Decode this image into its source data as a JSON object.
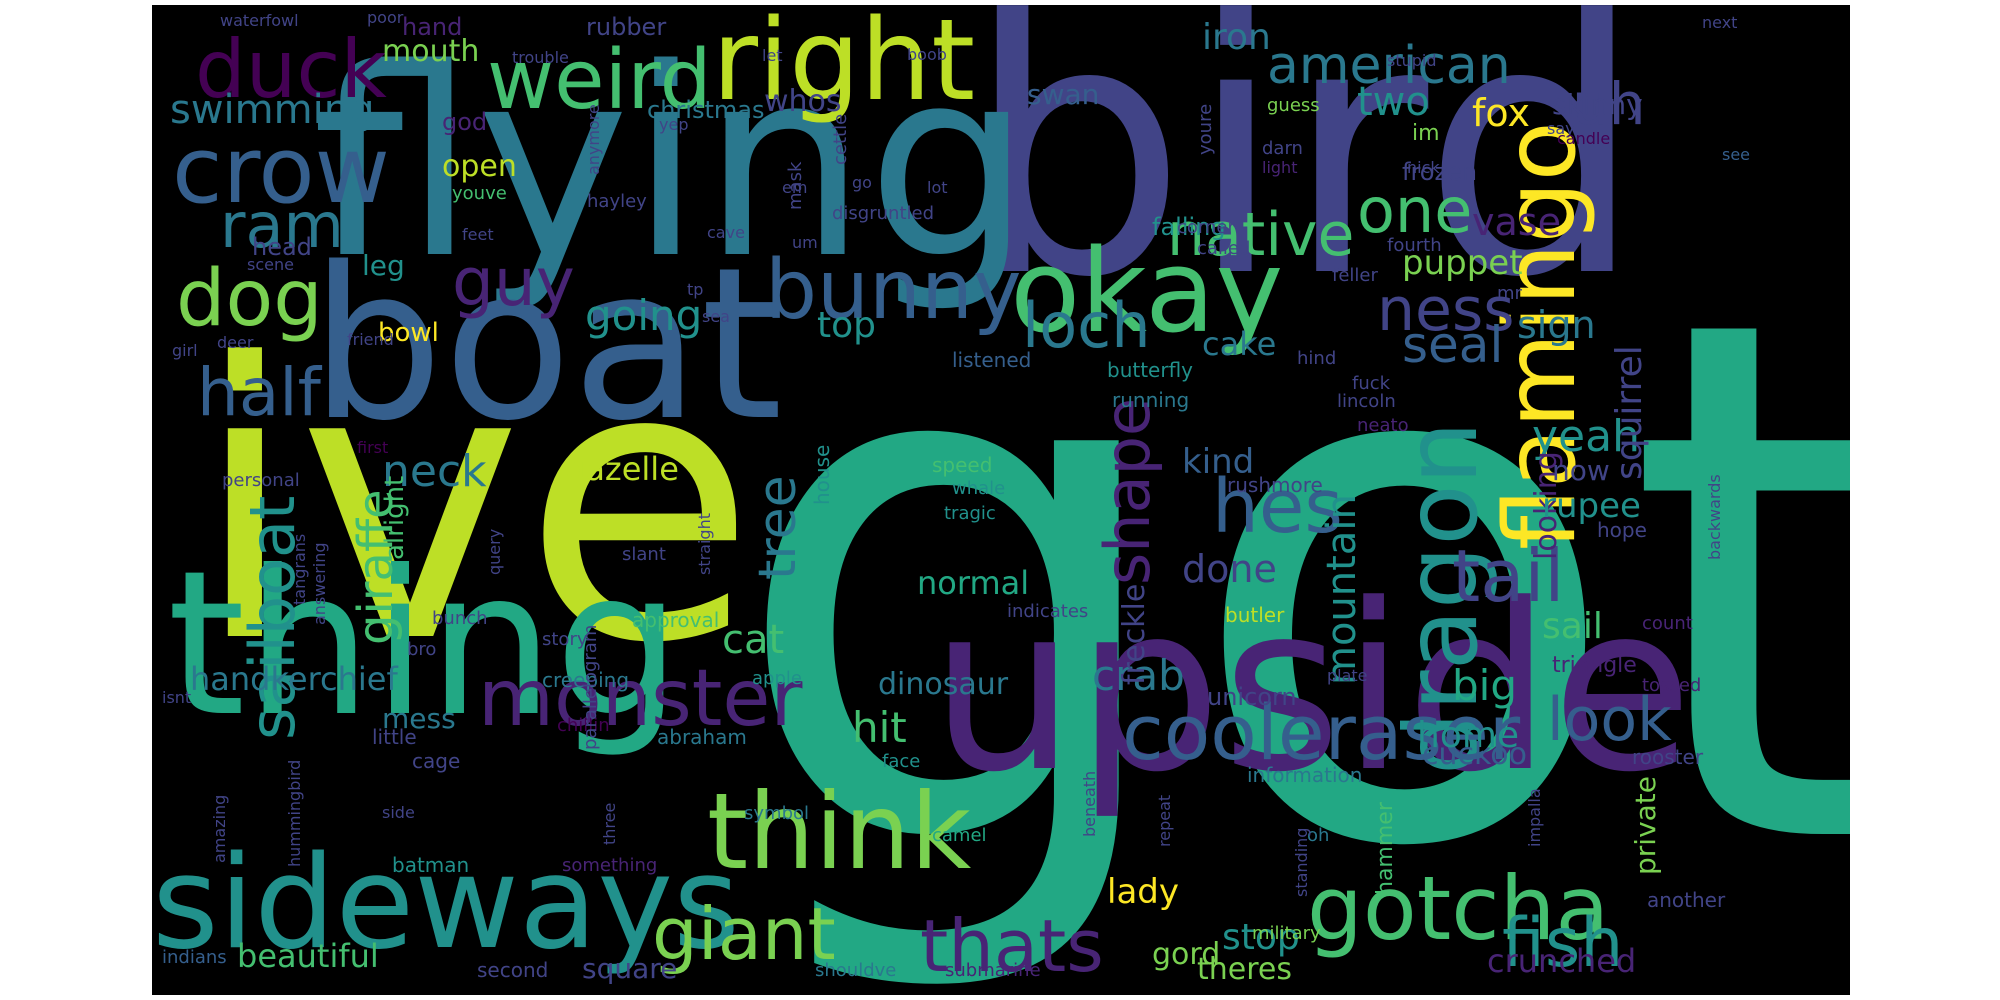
{
  "palette": {
    "background": "#000000",
    "page": "#ffffff",
    "colors": [
      "#440154",
      "#482475",
      "#414487",
      "#355f8d",
      "#2a788e",
      "#21918c",
      "#22a884",
      "#44bf70",
      "#7ad151",
      "#bddf26",
      "#fde725"
    ]
  },
  "words": [
    {
      "text": "got",
      "color": "#22a884",
      "vertical": false
    },
    {
      "text": "ive",
      "color": "#bddf26",
      "vertical": false
    },
    {
      "text": "bird",
      "color": "#414487",
      "vertical": false
    },
    {
      "text": "flying",
      "color": "#2a788e",
      "vertical": false
    },
    {
      "text": "boat",
      "color": "#355f8d",
      "vertical": false
    },
    {
      "text": "upside",
      "color": "#482475",
      "vertical": false
    },
    {
      "text": "thing",
      "color": "#22a884",
      "vertical": false
    },
    {
      "text": "sideways",
      "color": "#21918c",
      "vertical": false
    },
    {
      "text": "think",
      "color": "#7ad151",
      "vertical": false
    },
    {
      "text": "okay",
      "color": "#44bf70",
      "vertical": false
    },
    {
      "text": "right",
      "color": "#bddf26",
      "vertical": false
    },
    {
      "text": "crow",
      "color": "#355f8d",
      "vertical": false
    },
    {
      "text": "duck",
      "color": "#440154",
      "vertical": false
    },
    {
      "text": "dog",
      "color": "#7ad151",
      "vertical": false
    },
    {
      "text": "weird",
      "color": "#44bf70",
      "vertical": false
    },
    {
      "text": "bunny",
      "color": "#355f8d",
      "vertical": false
    },
    {
      "text": "flamingo",
      "color": "#fde725",
      "vertical": true
    },
    {
      "text": "dragon",
      "color": "#21918c",
      "vertical": true
    },
    {
      "text": "gotcha",
      "color": "#44bf70",
      "vertical": false
    },
    {
      "text": "monster",
      "color": "#482475",
      "vertical": false
    },
    {
      "text": "cooleraser",
      "color": "#355f8d",
      "vertical": false
    },
    {
      "text": "giant",
      "color": "#7ad151",
      "vertical": false
    },
    {
      "text": "thats",
      "color": "#482475",
      "vertical": false
    },
    {
      "text": "fish",
      "color": "#21918c",
      "vertical": false
    },
    {
      "text": "half",
      "color": "#355f8d",
      "vertical": false
    },
    {
      "text": "guy",
      "color": "#482475",
      "vertical": false
    },
    {
      "text": "native",
      "color": "#44bf70",
      "vertical": false
    },
    {
      "text": "one",
      "color": "#44bf70",
      "vertical": false
    },
    {
      "text": "american",
      "color": "#2a788e",
      "vertical": false
    },
    {
      "text": "hes",
      "color": "#355f8d",
      "vertical": false
    },
    {
      "text": "tail",
      "color": "#414487",
      "vertical": false
    },
    {
      "text": "loch",
      "color": "#2a788e",
      "vertical": false
    },
    {
      "text": "ram",
      "color": "#2a788e",
      "vertical": false
    },
    {
      "text": "ness",
      "color": "#414487",
      "vertical": false
    },
    {
      "text": "look",
      "color": "#355f8d",
      "vertical": false
    },
    {
      "text": "sailboat",
      "color": "#21918c",
      "vertical": true
    },
    {
      "text": "shape",
      "color": "#482475",
      "vertical": true
    },
    {
      "text": "uh",
      "color": "#414487",
      "vertical": false
    },
    {
      "text": "swimming",
      "color": "#2a788e",
      "vertical": false
    },
    {
      "text": "seal",
      "color": "#355f8d",
      "vertical": false
    },
    {
      "text": "going",
      "color": "#21918c",
      "vertical": false
    },
    {
      "text": "neck",
      "color": "#2a788e",
      "vertical": false
    },
    {
      "text": "giraffe",
      "color": "#44bf70",
      "vertical": true
    },
    {
      "text": "tree",
      "color": "#2a788e",
      "vertical": true
    },
    {
      "text": "mountain",
      "color": "#21918c",
      "vertical": true
    },
    {
      "text": "crab",
      "color": "#2a788e",
      "vertical": false
    },
    {
      "text": "hit",
      "color": "#44bf70",
      "vertical": false
    },
    {
      "text": "cat",
      "color": "#44bf70",
      "vertical": false
    },
    {
      "text": "handkerchief",
      "color": "#2a788e",
      "vertical": false
    },
    {
      "text": "gazelle",
      "color": "#bddf26",
      "vertical": false
    },
    {
      "text": "yeah",
      "color": "#21918c",
      "vertical": false
    },
    {
      "text": "kind",
      "color": "#355f8d",
      "vertical": false
    },
    {
      "text": "done",
      "color": "#414487",
      "vertical": false
    },
    {
      "text": "squirrel",
      "color": "#414487",
      "vertical": true
    },
    {
      "text": "looking",
      "color": "#482475",
      "vertical": true
    },
    {
      "text": "rupee",
      "color": "#21918c",
      "vertical": false
    },
    {
      "text": "sail",
      "color": "#44bf70",
      "vertical": false
    },
    {
      "text": "big",
      "color": "#22a884",
      "vertical": false
    },
    {
      "text": "home",
      "color": "#21918c",
      "vertical": false
    },
    {
      "text": "cuckoo",
      "color": "#355f8d",
      "vertical": false
    },
    {
      "text": "two",
      "color": "#21918c",
      "vertical": false
    },
    {
      "text": "fox",
      "color": "#fde725",
      "vertical": false
    },
    {
      "text": "vase",
      "color": "#482475",
      "vertical": false
    },
    {
      "text": "puppet",
      "color": "#7ad151",
      "vertical": false
    },
    {
      "text": "sign",
      "color": "#2a788e",
      "vertical": false
    },
    {
      "text": "top",
      "color": "#21918c",
      "vertical": false
    },
    {
      "text": "cake",
      "color": "#2a788e",
      "vertical": false
    },
    {
      "text": "lady",
      "color": "#fde725",
      "vertical": false
    },
    {
      "text": "stop",
      "color": "#21918c",
      "vertical": false
    },
    {
      "text": "beautiful",
      "color": "#44bf70",
      "vertical": false
    },
    {
      "text": "normal",
      "color": "#22a884",
      "vertical": false
    },
    {
      "text": "freckle",
      "color": "#414487",
      "vertical": true
    },
    {
      "text": "dinosaur",
      "color": "#2a788e",
      "vertical": false
    },
    {
      "text": "iron",
      "color": "#2a788e",
      "vertical": false
    },
    {
      "text": "mouth",
      "color": "#7ad151",
      "vertical": false
    },
    {
      "text": "open",
      "color": "#bddf26",
      "vertical": false
    },
    {
      "text": "whos",
      "color": "#414487",
      "vertical": false
    },
    {
      "text": "swan",
      "color": "#355f8d",
      "vertical": false
    },
    {
      "text": "leg",
      "color": "#21918c",
      "vertical": false
    },
    {
      "text": "bowl",
      "color": "#fde725",
      "vertical": false
    },
    {
      "text": "mess",
      "color": "#2a788e",
      "vertical": false
    },
    {
      "text": "theres",
      "color": "#7ad151",
      "vertical": false
    },
    {
      "text": "crunched",
      "color": "#482475",
      "vertical": false
    },
    {
      "text": "gord",
      "color": "#7ad151",
      "vertical": false
    },
    {
      "text": "square",
      "color": "#414487",
      "vertical": false
    },
    {
      "text": "skinny",
      "color": "#414487",
      "vertical": false
    },
    {
      "text": "now",
      "color": "#414487",
      "vertical": false
    },
    {
      "text": "private",
      "color": "#7ad151",
      "vertical": true
    },
    {
      "text": "triangle",
      "color": "#482475",
      "vertical": false
    },
    {
      "text": "hammer",
      "color": "#44bf70",
      "vertical": true
    },
    {
      "text": "unicorn",
      "color": "#414487",
      "vertical": false
    },
    {
      "text": "christmas",
      "color": "#2a788e",
      "vertical": false
    },
    {
      "text": "god",
      "color": "#482475",
      "vertical": false
    },
    {
      "text": "head",
      "color": "#414487",
      "vertical": false
    },
    {
      "text": "hand",
      "color": "#482475",
      "vertical": false
    },
    {
      "text": "rubber",
      "color": "#414487",
      "vertical": false
    },
    {
      "text": "alright",
      "color": "#44bf70",
      "vertical": true
    },
    {
      "text": "falling",
      "color": "#21918c",
      "vertical": false
    },
    {
      "text": "frozen",
      "color": "#414487",
      "vertical": false
    },
    {
      "text": "im",
      "color": "#7ad151",
      "vertical": false
    },
    {
      "text": "mr",
      "color": "#414487",
      "vertical": false
    },
    {
      "text": "information",
      "color": "#2a788e",
      "vertical": false
    },
    {
      "text": "house",
      "color": "#21918c",
      "vertical": true
    },
    {
      "text": "listened",
      "color": "#355f8d",
      "vertical": false
    },
    {
      "text": "butterfly",
      "color": "#21918c",
      "vertical": false
    },
    {
      "text": "running",
      "color": "#2a788e",
      "vertical": false
    },
    {
      "text": "speed",
      "color": "#44bf70",
      "vertical": false
    },
    {
      "text": "whale",
      "color": "#21918c",
      "vertical": false
    },
    {
      "text": "tragic",
      "color": "#21918c",
      "vertical": false
    },
    {
      "text": "approval",
      "color": "#44bf70",
      "vertical": false
    },
    {
      "text": "story",
      "color": "#414487",
      "vertical": false
    },
    {
      "text": "creeping",
      "color": "#2a788e",
      "vertical": false
    },
    {
      "text": "apple",
      "color": "#21918c",
      "vertical": false
    },
    {
      "text": "abraham",
      "color": "#2a788e",
      "vertical": false
    },
    {
      "text": "chillin",
      "color": "#440154",
      "vertical": false
    },
    {
      "text": "cage",
      "color": "#414487",
      "vertical": false
    },
    {
      "text": "face",
      "color": "#21918c",
      "vertical": false
    },
    {
      "text": "little",
      "color": "#414487",
      "vertical": false
    },
    {
      "text": "symbol",
      "color": "#2a788e",
      "vertical": false
    },
    {
      "text": "camel",
      "color": "#22a884",
      "vertical": false
    },
    {
      "text": "batman",
      "color": "#21918c",
      "vertical": false
    },
    {
      "text": "something",
      "color": "#482475",
      "vertical": false
    },
    {
      "text": "shouldve",
      "color": "#2a788e",
      "vertical": false
    },
    {
      "text": "submarine",
      "color": "#482475",
      "vertical": false
    },
    {
      "text": "second",
      "color": "#414487",
      "vertical": false
    },
    {
      "text": "indians",
      "color": "#355f8d",
      "vertical": false
    },
    {
      "text": "military",
      "color": "#7ad151",
      "vertical": false
    },
    {
      "text": "another",
      "color": "#414487",
      "vertical": false
    },
    {
      "text": "oh",
      "color": "#2a788e",
      "vertical": false
    },
    {
      "text": "rooster",
      "color": "#414487",
      "vertical": false
    },
    {
      "text": "tossed",
      "color": "#482475",
      "vertical": false
    },
    {
      "text": "count",
      "color": "#482475",
      "vertical": false
    },
    {
      "text": "hope",
      "color": "#414487",
      "vertical": false
    },
    {
      "text": "butler",
      "color": "#bddf26",
      "vertical": false
    },
    {
      "text": "rushmore",
      "color": "#414487",
      "vertical": false
    },
    {
      "text": "lincoln",
      "color": "#414487",
      "vertical": false
    },
    {
      "text": "neato",
      "color": "#482475",
      "vertical": false
    },
    {
      "text": "fuck",
      "color": "#414487",
      "vertical": false
    },
    {
      "text": "hind",
      "color": "#414487",
      "vertical": false
    },
    {
      "text": "feller",
      "color": "#414487",
      "vertical": false
    },
    {
      "text": "fourth",
      "color": "#414487",
      "vertical": false
    },
    {
      "text": "called",
      "color": "#414487",
      "vertical": false
    },
    {
      "text": "corner",
      "color": "#414487",
      "vertical": false
    },
    {
      "text": "nick",
      "color": "#414487",
      "vertical": false
    },
    {
      "text": "light",
      "color": "#482475",
      "vertical": false
    },
    {
      "text": "darn",
      "color": "#414487",
      "vertical": false
    },
    {
      "text": "guess",
      "color": "#7ad151",
      "vertical": false
    },
    {
      "text": "stupid",
      "color": "#414487",
      "vertical": false
    },
    {
      "text": "say",
      "color": "#414487",
      "vertical": false
    },
    {
      "text": "candle",
      "color": "#440154",
      "vertical": false
    },
    {
      "text": "next",
      "color": "#414487",
      "vertical": false
    },
    {
      "text": "see",
      "color": "#355f8d",
      "vertical": false
    },
    {
      "text": "youre",
      "color": "#414487",
      "vertical": true
    },
    {
      "text": "trouble",
      "color": "#414487",
      "vertical": false
    },
    {
      "text": "waterfowl",
      "color": "#414487",
      "vertical": false
    },
    {
      "text": "poor",
      "color": "#414487",
      "vertical": false
    },
    {
      "text": "let",
      "color": "#414487",
      "vertical": false
    },
    {
      "text": "boob",
      "color": "#414487",
      "vertical": false
    },
    {
      "text": "yep",
      "color": "#414487",
      "vertical": false
    },
    {
      "text": "lot",
      "color": "#414487",
      "vertical": false
    },
    {
      "text": "go",
      "color": "#414487",
      "vertical": false
    },
    {
      "text": "em",
      "color": "#414487",
      "vertical": false
    },
    {
      "text": "cettle",
      "color": "#414487",
      "vertical": true
    },
    {
      "text": "mask",
      "color": "#414487",
      "vertical": true
    },
    {
      "text": "anymore",
      "color": "#414487",
      "vertical": true
    },
    {
      "text": "youve",
      "color": "#44bf70",
      "vertical": false
    },
    {
      "text": "hayley",
      "color": "#414487",
      "vertical": false
    },
    {
      "text": "cave",
      "color": "#414487",
      "vertical": false
    },
    {
      "text": "feet",
      "color": "#414487",
      "vertical": false
    },
    {
      "text": "um",
      "color": "#414487",
      "vertical": false
    },
    {
      "text": "disgruntled",
      "color": "#414487",
      "vertical": false
    },
    {
      "text": "tp",
      "color": "#414487",
      "vertical": false
    },
    {
      "text": "sea",
      "color": "#414487",
      "vertical": false
    },
    {
      "text": "scene",
      "color": "#414487",
      "vertical": false
    },
    {
      "text": "girl",
      "color": "#414487",
      "vertical": false
    },
    {
      "text": "deer",
      "color": "#414487",
      "vertical": false
    },
    {
      "text": "friend",
      "color": "#414487",
      "vertical": false
    },
    {
      "text": "first",
      "color": "#440154",
      "vertical": false
    },
    {
      "text": "personal",
      "color": "#414487",
      "vertical": false
    },
    {
      "text": "parallelogram",
      "color": "#414487",
      "vertical": true
    },
    {
      "text": "query",
      "color": "#414487",
      "vertical": true
    },
    {
      "text": "slant",
      "color": "#414487",
      "vertical": false
    },
    {
      "text": "straight",
      "color": "#414487",
      "vertical": true
    },
    {
      "text": "tangrans",
      "color": "#414487",
      "vertical": true
    },
    {
      "text": "answering",
      "color": "#414487",
      "vertical": true
    },
    {
      "text": "bunch",
      "color": "#414487",
      "vertical": false
    },
    {
      "text": "bro",
      "color": "#414487",
      "vertical": false
    },
    {
      "text": "isnt",
      "color": "#414487",
      "vertical": false
    },
    {
      "text": "hummingbird",
      "color": "#414487",
      "vertical": true
    },
    {
      "text": "amazing",
      "color": "#414487",
      "vertical": true
    },
    {
      "text": "side",
      "color": "#414487",
      "vertical": false
    },
    {
      "text": "three",
      "color": "#414487",
      "vertical": true
    },
    {
      "text": "indicates",
      "color": "#414487",
      "vertical": false
    },
    {
      "text": "beneath",
      "color": "#414487",
      "vertical": true
    },
    {
      "text": "repeat",
      "color": "#414487",
      "vertical": true
    },
    {
      "text": "standing",
      "color": "#414487",
      "vertical": true
    },
    {
      "text": "impalla",
      "color": "#414487",
      "vertical": true
    },
    {
      "text": "plate",
      "color": "#414487",
      "vertical": false
    },
    {
      "text": "backwards",
      "color": "#414487",
      "vertical": true
    }
  ]
}
